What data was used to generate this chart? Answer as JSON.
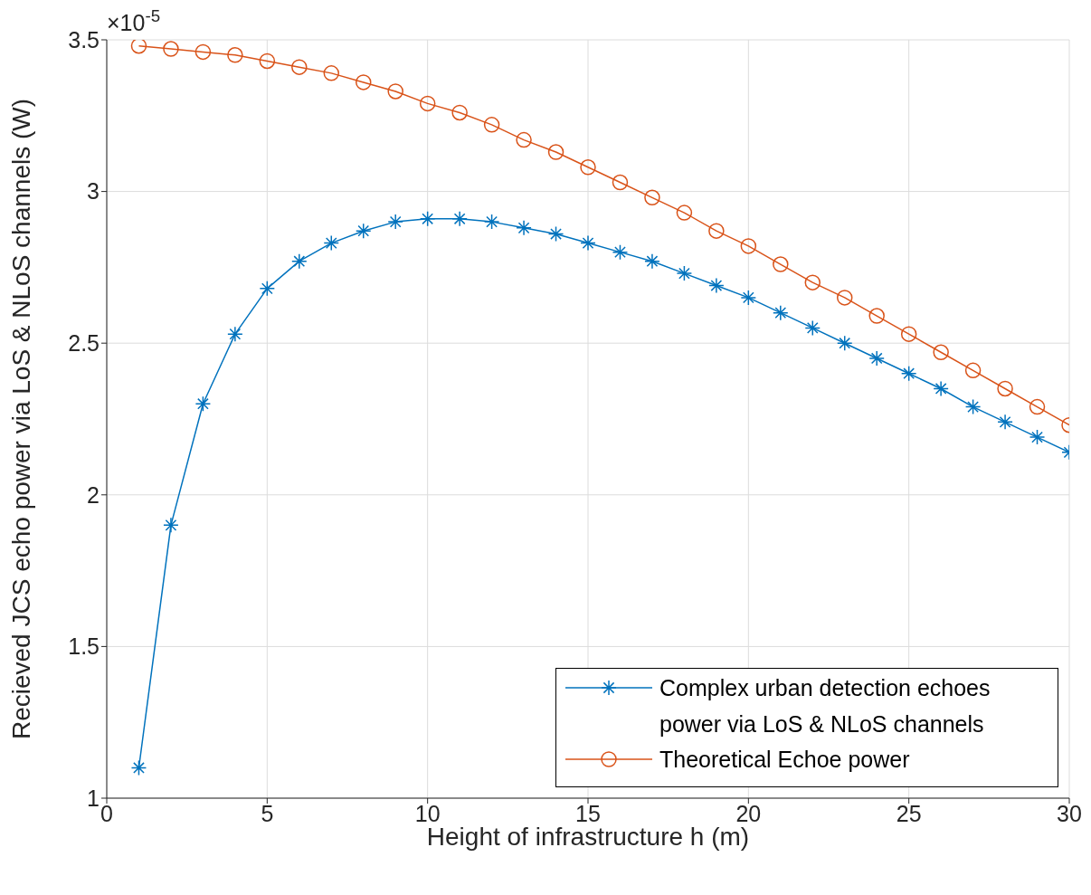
{
  "chart_data": {
    "type": "line",
    "xlabel": "Height of infrastructure h (m)",
    "ylabel": "Recieved JCS echo power via LoS & NLoS channels (W)",
    "annotations": [
      "×10$^{-5}$"
    ],
    "x": [
      1,
      2,
      3,
      4,
      5,
      6,
      7,
      8,
      9,
      10,
      11,
      12,
      13,
      14,
      15,
      16,
      17,
      18,
      19,
      20,
      21,
      22,
      23,
      24,
      25,
      26,
      27,
      28,
      29,
      30
    ],
    "series": [
      {
        "name": "Complex urban detection echoes power via LoS & NLoS channels",
        "color": "#0072bd",
        "marker": "cross",
        "values": [
          1.1,
          1.9,
          2.3,
          2.53,
          2.68,
          2.77,
          2.83,
          2.87,
          2.9,
          2.91,
          2.91,
          2.9,
          2.88,
          2.86,
          2.83,
          2.8,
          2.77,
          2.73,
          2.69,
          2.65,
          2.6,
          2.55,
          2.5,
          2.45,
          2.4,
          2.35,
          2.29,
          2.24,
          2.19,
          2.14
        ]
      },
      {
        "name": "Theoretical Echoe power",
        "color": "#d95319",
        "marker": "circle",
        "values": [
          3.48,
          3.47,
          3.46,
          3.45,
          3.43,
          3.41,
          3.39,
          3.36,
          3.33,
          3.29,
          3.26,
          3.22,
          3.17,
          3.13,
          3.08,
          3.03,
          2.98,
          2.93,
          2.87,
          2.82,
          2.76,
          2.7,
          2.65,
          2.59,
          2.53,
          2.47,
          2.41,
          2.35,
          2.29,
          2.23
        ]
      }
    ],
    "xlim": [
      0,
      30
    ],
    "xticks": [
      0,
      5,
      10,
      15,
      20,
      25,
      30
    ],
    "ylim": [
      1,
      3.5
    ],
    "yticks": [
      1,
      1.5,
      2,
      2.5,
      3,
      3.5
    ],
    "grid": true,
    "legend": "bottom right",
    "line_style": "solid"
  }
}
